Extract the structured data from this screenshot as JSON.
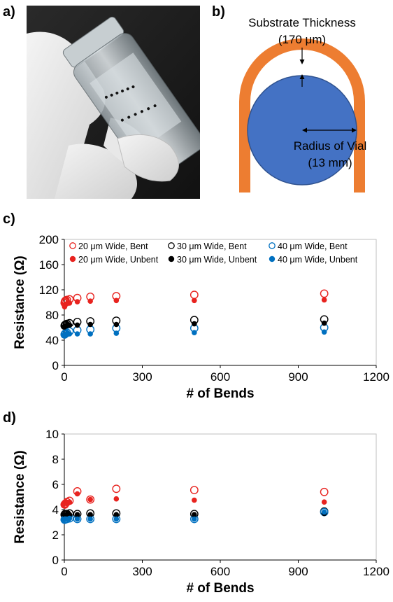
{
  "panels": {
    "a": "a)",
    "b": "b)",
    "c": "c)",
    "d": "d)"
  },
  "diagram": {
    "substrate_label": "Substrate Thickness",
    "substrate_value": "(170 μm)",
    "radius_label": "Radius of Vial",
    "radius_value": "(13 mm)",
    "colors": {
      "substrate": "#ED7D31",
      "vial": "#4472C4"
    }
  },
  "colors": {
    "20": "#E8231F",
    "30": "#000000",
    "40": "#0070C0"
  },
  "chart_data": [
    {
      "type": "scatter",
      "xlabel": "# of Bends",
      "ylabel": "Resistance (Ω)",
      "xlim": [
        0,
        1200
      ],
      "ylim": [
        0,
        200
      ],
      "xticks": [
        "0",
        "300",
        "600",
        "900",
        "1200"
      ],
      "yticks": [
        "0",
        "40",
        "80",
        "120",
        "160",
        "200"
      ],
      "grid": false,
      "legend_position": "top",
      "series": [
        {
          "name": "20 μm Wide, Bent",
          "color": "#E8231F",
          "marker": "open",
          "x": [
            1,
            2,
            3,
            5,
            10,
            20,
            50,
            100,
            200,
            500,
            1000
          ],
          "y": [
            99,
            101,
            102,
            103,
            104,
            105,
            107,
            109,
            110,
            112,
            114
          ]
        },
        {
          "name": "30 μm Wide, Bent",
          "color": "#000000",
          "marker": "open",
          "x": [
            1,
            2,
            3,
            5,
            10,
            20,
            50,
            100,
            200,
            500,
            1000
          ],
          "y": [
            63,
            64,
            64,
            65,
            66,
            67,
            69,
            70,
            71,
            72,
            73
          ]
        },
        {
          "name": "40 μm Wide, Bent",
          "color": "#0070C0",
          "marker": "open",
          "x": [
            1,
            2,
            3,
            5,
            10,
            20,
            50,
            100,
            200,
            500,
            1000
          ],
          "y": [
            49,
            50,
            50,
            51,
            52,
            54,
            56,
            57,
            59,
            59,
            60
          ]
        },
        {
          "name": "20 μm Wide, Unbent",
          "color": "#E8231F",
          "marker": "filled",
          "x": [
            1,
            2,
            3,
            5,
            10,
            20,
            50,
            100,
            200,
            500,
            1000
          ],
          "y": [
            93,
            95,
            96,
            97,
            98,
            99,
            101,
            102,
            103,
            103,
            104
          ]
        },
        {
          "name": "30 μm Wide, Unbent",
          "color": "#000000",
          "marker": "filled",
          "x": [
            1,
            2,
            3,
            5,
            10,
            20,
            50,
            100,
            200,
            500,
            1000
          ],
          "y": [
            61,
            62,
            62,
            63,
            63,
            64,
            64,
            65,
            65,
            66,
            67
          ]
        },
        {
          "name": "40 μm Wide, Unbent",
          "color": "#0070C0",
          "marker": "filled",
          "x": [
            1,
            2,
            3,
            5,
            10,
            20,
            50,
            100,
            200,
            500,
            1000
          ],
          "y": [
            48,
            49,
            49,
            49,
            49,
            50,
            50,
            50,
            51,
            52,
            53
          ]
        }
      ]
    },
    {
      "type": "scatter",
      "xlabel": "# of Bends",
      "ylabel": "Resistance (Ω)",
      "xlim": [
        0,
        1200
      ],
      "ylim": [
        0,
        10
      ],
      "xticks": [
        "0",
        "300",
        "600",
        "900",
        "1200"
      ],
      "yticks": [
        "0",
        "2",
        "4",
        "6",
        "8",
        "10"
      ],
      "grid": false,
      "series": [
        {
          "name": "20 μm Wide, Bent",
          "color": "#E8231F",
          "marker": "open",
          "x": [
            1,
            2,
            3,
            5,
            10,
            20,
            50,
            100,
            200,
            500,
            1000
          ],
          "y": [
            4.4,
            4.4,
            4.45,
            4.5,
            4.6,
            4.7,
            5.45,
            4.8,
            5.65,
            5.55,
            5.4
          ]
        },
        {
          "name": "30 μm Wide, Bent",
          "color": "#000000",
          "marker": "open",
          "x": [
            1,
            2,
            3,
            5,
            10,
            20,
            50,
            100,
            200,
            500,
            1000
          ],
          "y": [
            3.6,
            3.6,
            3.65,
            3.65,
            3.65,
            3.7,
            3.65,
            3.7,
            3.7,
            3.65,
            3.85
          ]
        },
        {
          "name": "40 μm Wide, Bent",
          "color": "#0070C0",
          "marker": "open",
          "x": [
            1,
            2,
            3,
            5,
            10,
            20,
            50,
            100,
            200,
            500,
            1000
          ],
          "y": [
            3.2,
            3.2,
            3.25,
            3.25,
            3.25,
            3.3,
            3.25,
            3.25,
            3.25,
            3.25,
            3.8
          ]
        },
        {
          "name": "20 μm Wide, Unbent",
          "color": "#E8231F",
          "marker": "filled",
          "x": [
            1,
            2,
            3,
            5,
            10,
            20,
            50,
            100,
            200,
            500,
            1000
          ],
          "y": [
            4.5,
            4.5,
            4.5,
            4.55,
            4.55,
            4.6,
            5.25,
            4.8,
            4.85,
            4.75,
            4.6
          ]
        },
        {
          "name": "30 μm Wide, Unbent",
          "color": "#000000",
          "marker": "filled",
          "x": [
            1,
            2,
            3,
            5,
            10,
            20,
            50,
            100,
            200,
            500,
            1000
          ],
          "y": [
            3.6,
            3.6,
            3.6,
            3.6,
            3.6,
            3.6,
            3.6,
            3.6,
            3.6,
            3.6,
            3.7
          ]
        },
        {
          "name": "40 μm Wide, Unbent",
          "color": "#0070C0",
          "marker": "filled",
          "x": [
            1,
            2,
            3,
            5,
            10,
            20,
            50,
            100,
            200,
            500,
            1000
          ],
          "y": [
            3.25,
            3.25,
            3.25,
            3.25,
            3.25,
            3.3,
            3.25,
            3.25,
            3.25,
            3.25,
            3.8
          ]
        }
      ]
    }
  ]
}
